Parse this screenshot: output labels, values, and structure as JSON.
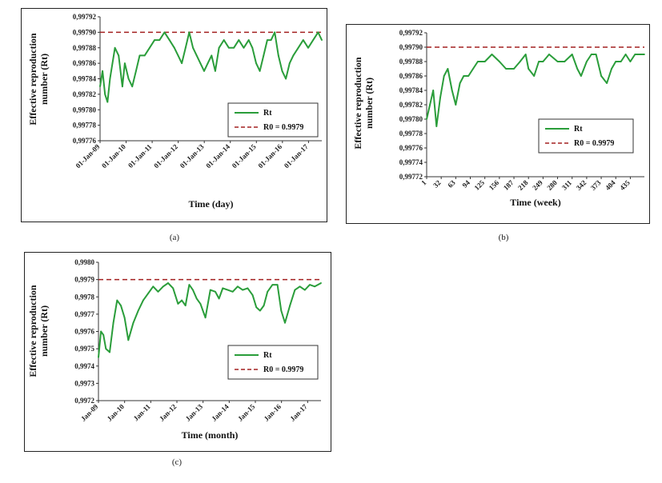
{
  "figure": {
    "captions": [
      "(a)",
      "(b)",
      "(c)"
    ]
  },
  "colors": {
    "rt": "#2a9d3a",
    "r0": "#a32020",
    "axis": "#333333"
  },
  "chart_data": [
    {
      "type": "line",
      "panel": "a",
      "xlabel": "Time (day)",
      "ylabel": "Effective reproduction number (Rt)",
      "ylim": [
        0.99776,
        0.99792
      ],
      "yticks": [
        "0,99776",
        "0,99778",
        "0,99780",
        "0,99782",
        "0,99784",
        "0,99786",
        "0,99788",
        "0,99790",
        "0,99792"
      ],
      "xticks": [
        "01-Jan-09",
        "01-Jan-10",
        "01-Jan-11",
        "01-Jan-12",
        "01-Jan-13",
        "01-Jan-14",
        "01-Jan-15",
        "01-Jan-16",
        "01-Jan-17"
      ],
      "xlim": [
        2009.0,
        2017.95
      ],
      "legend": {
        "placement": "center-right",
        "entries": [
          "Rt",
          "R0 = 0.9979"
        ]
      },
      "reference_line": {
        "name": "R0 = 0.9979",
        "y": 0.9979
      },
      "series": [
        {
          "name": "Rt",
          "x": [
            2009.0,
            2009.1,
            2009.2,
            2009.3,
            2009.4,
            2009.5,
            2009.6,
            2009.75,
            2009.9,
            2010.0,
            2010.15,
            2010.3,
            2010.45,
            2010.6,
            2010.8,
            2011.0,
            2011.2,
            2011.4,
            2011.6,
            2011.8,
            2012.0,
            2012.15,
            2012.3,
            2012.45,
            2012.6,
            2012.75,
            2012.9,
            2013.05,
            2013.2,
            2013.35,
            2013.5,
            2013.65,
            2013.8,
            2014.0,
            2014.2,
            2014.4,
            2014.6,
            2014.8,
            2015.0,
            2015.15,
            2015.3,
            2015.45,
            2015.6,
            2015.75,
            2015.9,
            2016.05,
            2016.2,
            2016.35,
            2016.5,
            2016.65,
            2016.8,
            2017.0,
            2017.2,
            2017.4,
            2017.6,
            2017.8,
            2017.95
          ],
          "values": [
            0.99783,
            0.99785,
            0.99782,
            0.99781,
            0.99784,
            0.99786,
            0.99788,
            0.99787,
            0.99783,
            0.99786,
            0.99784,
            0.99783,
            0.99785,
            0.99787,
            0.99787,
            0.99788,
            0.99789,
            0.99789,
            0.9979,
            0.99789,
            0.99788,
            0.99787,
            0.99786,
            0.99788,
            0.9979,
            0.99788,
            0.99787,
            0.99786,
            0.99785,
            0.99786,
            0.99787,
            0.99785,
            0.99788,
            0.99789,
            0.99788,
            0.99788,
            0.99789,
            0.99788,
            0.99789,
            0.99788,
            0.99786,
            0.99785,
            0.99787,
            0.99789,
            0.99789,
            0.9979,
            0.99787,
            0.99785,
            0.99784,
            0.99786,
            0.99787,
            0.99788,
            0.99789,
            0.99788,
            0.99789,
            0.9979,
            0.99789
          ]
        }
      ]
    },
    {
      "type": "line",
      "panel": "b",
      "xlabel": "Time (week)",
      "ylabel": "Effective reproduction number (Rt)",
      "ylim": [
        0.99772,
        0.99792
      ],
      "yticks": [
        "0,99772",
        "0,99774",
        "0,99776",
        "0,99778",
        "0,99780",
        "0,99782",
        "0,99784",
        "0,99786",
        "0,99788",
        "0,99790",
        "0,99792"
      ],
      "xticks": [
        "1",
        "32",
        "63",
        "94",
        "125",
        "156",
        "187",
        "218",
        "249",
        "280",
        "311",
        "342",
        "373",
        "404",
        "435"
      ],
      "xlim": [
        1,
        465
      ],
      "legend": {
        "placement": "center-right",
        "entries": [
          "Rt",
          "R0 = 0.9979"
        ]
      },
      "reference_line": {
        "name": "R0 = 0.9979",
        "y": 0.9979
      },
      "series": [
        {
          "name": "Rt",
          "x": [
            1,
            8,
            15,
            22,
            30,
            38,
            46,
            55,
            63,
            72,
            80,
            90,
            100,
            110,
            125,
            140,
            156,
            170,
            187,
            200,
            212,
            218,
            230,
            240,
            249,
            262,
            280,
            295,
            311,
            322,
            330,
            342,
            352,
            362,
            373,
            385,
            395,
            404,
            415,
            425,
            435,
            445,
            455,
            465
          ],
          "values": [
            0.9978,
            0.99782,
            0.99784,
            0.99779,
            0.99783,
            0.99786,
            0.99787,
            0.99784,
            0.99782,
            0.99785,
            0.99786,
            0.99786,
            0.99787,
            0.99788,
            0.99788,
            0.99789,
            0.99788,
            0.99787,
            0.99787,
            0.99788,
            0.99789,
            0.99787,
            0.99786,
            0.99788,
            0.99788,
            0.99789,
            0.99788,
            0.99788,
            0.99789,
            0.99787,
            0.99786,
            0.99788,
            0.99789,
            0.99789,
            0.99786,
            0.99785,
            0.99787,
            0.99788,
            0.99788,
            0.99789,
            0.99788,
            0.99789,
            0.99789,
            0.99789
          ]
        }
      ]
    },
    {
      "type": "line",
      "panel": "c",
      "xlabel": "Time (month)",
      "ylabel": "Effective reproduction number (Rt)",
      "ylim": [
        0.9972,
        0.998
      ],
      "yticks": [
        "0,9972",
        "0,9973",
        "0,9974",
        "0,9975",
        "0,9976",
        "0,9977",
        "0,9978",
        "0,9979",
        "0,9980"
      ],
      "xticks": [
        "Jan-09",
        "Jan-10",
        "Jan-11",
        "Jan-12",
        "Jan-13",
        "Jan-14",
        "Jan-15",
        "Jan-16",
        "Jan-17"
      ],
      "xlim": [
        2009.0,
        2017.95
      ],
      "legend": {
        "placement": "center-right",
        "entries": [
          "Rt",
          "R0 = 0.9979"
        ]
      },
      "reference_line": {
        "name": "R0 = 0.9979",
        "y": 0.9979
      },
      "series": [
        {
          "name": "Rt",
          "x": [
            2009.0,
            2009.1,
            2009.2,
            2009.3,
            2009.45,
            2009.6,
            2009.75,
            2009.9,
            2010.05,
            2010.2,
            2010.4,
            2010.6,
            2010.8,
            2011.0,
            2011.2,
            2011.4,
            2011.6,
            2011.8,
            2012.0,
            2012.2,
            2012.35,
            2012.5,
            2012.65,
            2012.8,
            2012.95,
            2013.1,
            2013.3,
            2013.5,
            2013.7,
            2013.85,
            2014.0,
            2014.2,
            2014.4,
            2014.6,
            2014.8,
            2015.0,
            2015.2,
            2015.35,
            2015.5,
            2015.65,
            2015.8,
            2016.0,
            2016.2,
            2016.35,
            2016.5,
            2016.7,
            2016.9,
            2017.1,
            2017.3,
            2017.5,
            2017.7,
            2017.95
          ],
          "values": [
            0.99745,
            0.9976,
            0.99758,
            0.9975,
            0.99748,
            0.99765,
            0.99778,
            0.99775,
            0.99768,
            0.99755,
            0.99765,
            0.99772,
            0.99778,
            0.99782,
            0.99786,
            0.99783,
            0.99786,
            0.99788,
            0.99785,
            0.99776,
            0.99778,
            0.99775,
            0.99787,
            0.99784,
            0.99779,
            0.99776,
            0.99768,
            0.99784,
            0.99783,
            0.99779,
            0.99785,
            0.99784,
            0.99783,
            0.99786,
            0.99784,
            0.99785,
            0.99781,
            0.99774,
            0.99772,
            0.99775,
            0.99783,
            0.99787,
            0.99787,
            0.99772,
            0.99765,
            0.99775,
            0.99784,
            0.99786,
            0.99784,
            0.99787,
            0.99786,
            0.99788
          ]
        }
      ]
    }
  ]
}
